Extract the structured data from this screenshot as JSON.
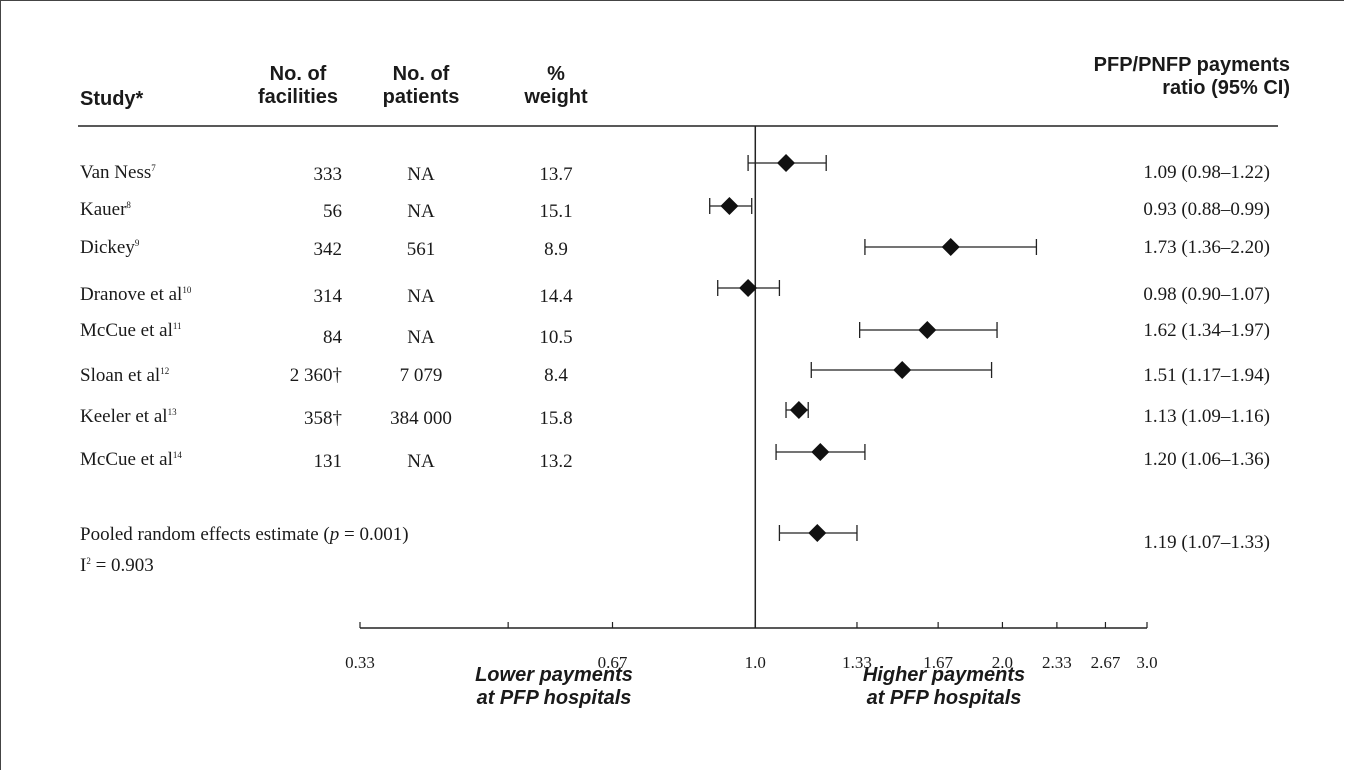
{
  "headers": {
    "study": "Study*",
    "facilities": [
      "No. of",
      "facilities"
    ],
    "patients": [
      "No. of",
      "patients"
    ],
    "weight": [
      "%",
      "weight"
    ],
    "ratio": [
      "PFP/PNFP payments",
      "ratio (95% CI)"
    ]
  },
  "studies": [
    {
      "name": "Van Ness",
      "ref": "7",
      "facilities": "333",
      "patients": "NA",
      "weight": "13.7",
      "ci_text": "1.09 (0.98–1.22)"
    },
    {
      "name": "Kauer",
      "ref": "8",
      "facilities": "56",
      "patients": "NA",
      "weight": "15.1",
      "ci_text": "0.93 (0.88–0.99)"
    },
    {
      "name": "Dickey",
      "ref": "9",
      "facilities": "342",
      "patients": "561",
      "weight": "8.9",
      "ci_text": "1.73 (1.36–2.20)"
    },
    {
      "name": "Dranove et al",
      "ref": "10",
      "facilities": "314",
      "patients": "NA",
      "weight": "14.4",
      "ci_text": "0.98 (0.90–1.07)"
    },
    {
      "name": "McCue et al",
      "ref": "11",
      "facilities": "84",
      "patients": "NA",
      "weight": "10.5",
      "ci_text": "1.62 (1.34–1.97)"
    },
    {
      "name": "Sloan et al",
      "ref": "12",
      "facilities": "2 360†",
      "patients": "7 079",
      "weight": "8.4",
      "ci_text": "1.51 (1.17–1.94)"
    },
    {
      "name": "Keeler et al",
      "ref": "13",
      "facilities": "358†",
      "patients": "384 000",
      "weight": "15.8",
      "ci_text": "1.13 (1.09–1.16)"
    },
    {
      "name": "McCue et al",
      "ref": "14",
      "facilities": "131",
      "patients": "NA",
      "weight": "13.2",
      "ci_text": "1.20 (1.06–1.36)"
    }
  ],
  "pooled": {
    "label_pre": "Pooled random effects estimate (",
    "label_p": "p",
    "label_post": " = 0.001)",
    "i2_label": "I",
    "i2_sup": "2",
    "i2_value": " = 0.903",
    "ci_text": "1.19 (1.07–1.33)"
  },
  "direction_labels": {
    "lower": [
      "Lower payments",
      "at PFP hospitals"
    ],
    "higher": [
      "Higher payments",
      "at PFP hospitals"
    ]
  },
  "chart_data": {
    "type": "forest",
    "xscale": "log",
    "xlim": [
      0.33,
      3.0
    ],
    "reference_line": 1.0,
    "tick_labels": [
      "0.33",
      "0.67",
      "1.0",
      "1.33",
      "1.67",
      "2.0",
      "2.33",
      "2.67",
      "3.0"
    ],
    "tick_values": [
      0.33,
      0.67,
      1.0,
      1.33,
      1.67,
      2.0,
      2.33,
      2.67,
      3.0
    ],
    "minor_ticks": [
      0.5
    ],
    "points": [
      {
        "est": 1.09,
        "lo": 0.98,
        "hi": 1.22
      },
      {
        "est": 0.93,
        "lo": 0.88,
        "hi": 0.99
      },
      {
        "est": 1.73,
        "lo": 1.36,
        "hi": 2.2
      },
      {
        "est": 0.98,
        "lo": 0.9,
        "hi": 1.07
      },
      {
        "est": 1.62,
        "lo": 1.34,
        "hi": 1.97
      },
      {
        "est": 1.51,
        "lo": 1.17,
        "hi": 1.94
      },
      {
        "est": 1.13,
        "lo": 1.09,
        "hi": 1.16
      },
      {
        "est": 1.2,
        "lo": 1.06,
        "hi": 1.36
      }
    ],
    "pooled": {
      "est": 1.19,
      "lo": 1.07,
      "hi": 1.33
    }
  }
}
